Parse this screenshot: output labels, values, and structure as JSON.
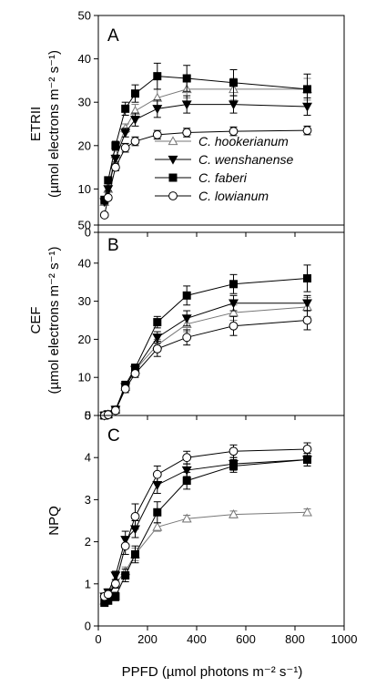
{
  "chart_data": [
    {
      "type": "line",
      "panel": "A",
      "ylabel_line1": "ETRII",
      "ylabel_line2": "(µmol electrons m⁻² s⁻¹)",
      "ylim": [
        0,
        50
      ],
      "yticks": [
        0,
        10,
        20,
        30,
        40,
        50
      ],
      "xlim": [
        0,
        1000
      ],
      "show_x_tick_labels": false,
      "legend": "center-right",
      "series": [
        {
          "name": "C. hookerianum",
          "marker": "triangle-up-open",
          "x": [
            25,
            40,
            70,
            110,
            150,
            240,
            360,
            550,
            850
          ],
          "y": [
            7,
            10,
            18,
            24,
            28,
            31,
            33,
            33,
            33
          ],
          "err": [
            0.5,
            0.5,
            0.8,
            1,
            1.5,
            2,
            2,
            2.5,
            2.5
          ]
        },
        {
          "name": "C. wenshanense",
          "marker": "triangle-down-filled",
          "x": [
            25,
            40,
            70,
            110,
            150,
            240,
            360,
            550,
            850
          ],
          "y": [
            7,
            10,
            17,
            23,
            26,
            28.5,
            29.5,
            29.5,
            29
          ],
          "err": [
            0.5,
            0.5,
            0.8,
            1,
            1.5,
            2,
            2,
            2,
            2
          ]
        },
        {
          "name": "C. faberi",
          "marker": "square-filled",
          "x": [
            25,
            40,
            70,
            110,
            150,
            240,
            360,
            550,
            850
          ],
          "y": [
            7.5,
            12,
            20,
            28.5,
            32,
            36,
            35.5,
            34.5,
            33
          ],
          "err": [
            0.5,
            0.5,
            1,
            1.5,
            2,
            3,
            3,
            3,
            3.5
          ]
        },
        {
          "name": "C. lowianum",
          "marker": "circle-open",
          "x": [
            25,
            40,
            70,
            110,
            150,
            240,
            360,
            550,
            850
          ],
          "y": [
            4,
            8,
            15,
            19.5,
            21,
            22.5,
            23,
            23.3,
            23.5
          ],
          "err": [
            0.5,
            0.5,
            0.8,
            1,
            1,
            1,
            1,
            1,
            1
          ]
        }
      ]
    },
    {
      "type": "line",
      "panel": "B",
      "ylabel_line1": "CEF",
      "ylabel_line2": "(µmol electrons m⁻² s⁻¹)",
      "ylim": [
        0,
        50
      ],
      "yticks": [
        0,
        10,
        20,
        30,
        40,
        50
      ],
      "xlim": [
        0,
        1000
      ],
      "show_x_tick_labels": false,
      "series": [
        {
          "name": "C. hookerianum",
          "marker": "triangle-up-open",
          "x": [
            25,
            40,
            70,
            110,
            150,
            240,
            360,
            550,
            850
          ],
          "y": [
            0,
            0.3,
            1.5,
            7.5,
            12,
            18.5,
            24,
            27,
            28.5
          ],
          "err": [
            0.3,
            0.3,
            0.5,
            1,
            1,
            1.5,
            2,
            2,
            2.5
          ]
        },
        {
          "name": "C. wenshanense",
          "marker": "triangle-down-filled",
          "x": [
            25,
            40,
            70,
            110,
            150,
            240,
            360,
            550,
            850
          ],
          "y": [
            0,
            0.3,
            1.5,
            7.5,
            12,
            20.5,
            25.5,
            29.5,
            29.5
          ],
          "err": [
            0.3,
            0.3,
            0.5,
            1,
            1,
            1.5,
            2,
            2,
            2
          ]
        },
        {
          "name": "C. faberi",
          "marker": "square-filled",
          "x": [
            25,
            40,
            70,
            110,
            150,
            240,
            360,
            550,
            850
          ],
          "y": [
            0,
            0.3,
            1.5,
            8,
            12.5,
            24.5,
            31.5,
            34.5,
            36
          ],
          "err": [
            0.3,
            0.3,
            0.5,
            1,
            1,
            1.5,
            2.5,
            2.5,
            3.5
          ]
        },
        {
          "name": "C. lowianum",
          "marker": "circle-open",
          "x": [
            25,
            40,
            70,
            110,
            150,
            240,
            360,
            550,
            850
          ],
          "y": [
            0,
            0.2,
            1.3,
            7,
            11,
            17.5,
            20.5,
            23.5,
            25
          ],
          "err": [
            0.3,
            0.3,
            0.5,
            1,
            1,
            2,
            2,
            2.5,
            2.5
          ]
        }
      ]
    },
    {
      "type": "line",
      "panel": "C",
      "ylabel_line1": "NPQ",
      "ylim": [
        0,
        5
      ],
      "yticks": [
        0,
        1,
        2,
        3,
        4,
        5
      ],
      "xlim": [
        0,
        1000
      ],
      "xticks": [
        0,
        200,
        400,
        600,
        800,
        1000
      ],
      "show_x_tick_labels": true,
      "xlabel": "PPFD (µmol photons m⁻² s⁻¹)",
      "series": [
        {
          "name": "C. hookerianum",
          "marker": "triangle-up-open",
          "x": [
            25,
            40,
            70,
            110,
            150,
            240,
            360,
            550,
            850
          ],
          "y": [
            0.6,
            0.7,
            1,
            1.3,
            1.7,
            2.35,
            2.55,
            2.65,
            2.7
          ],
          "err": [
            0.08,
            0.08,
            0.1,
            0.1,
            0.15,
            0.1,
            0.08,
            0.08,
            0.08
          ]
        },
        {
          "name": "C. wenshanense",
          "marker": "triangle-down-filled",
          "x": [
            25,
            40,
            70,
            110,
            150,
            240,
            360,
            550,
            850
          ],
          "y": [
            0.7,
            0.8,
            1.2,
            2.05,
            2.3,
            3.35,
            3.7,
            3.85,
            3.95
          ],
          "err": [
            0.08,
            0.08,
            0.1,
            0.2,
            0.2,
            0.2,
            0.15,
            0.15,
            0.15
          ]
        },
        {
          "name": "C. faberi",
          "marker": "square-filled",
          "x": [
            25,
            40,
            70,
            110,
            150,
            240,
            360,
            550,
            850
          ],
          "y": [
            0.55,
            0.6,
            0.7,
            1.2,
            1.7,
            2.7,
            3.45,
            3.8,
            3.95
          ],
          "err": [
            0.05,
            0.05,
            0.1,
            0.15,
            0.2,
            0.25,
            0.2,
            0.15,
            0.15
          ]
        },
        {
          "name": "C. lowianum",
          "marker": "circle-open",
          "x": [
            25,
            40,
            70,
            110,
            150,
            240,
            360,
            550,
            850
          ],
          "y": [
            0.7,
            0.75,
            1,
            1.9,
            2.6,
            3.6,
            4,
            4.15,
            4.2
          ],
          "err": [
            0.08,
            0.08,
            0.1,
            0.2,
            0.3,
            0.2,
            0.15,
            0.15,
            0.15
          ]
        }
      ]
    }
  ]
}
